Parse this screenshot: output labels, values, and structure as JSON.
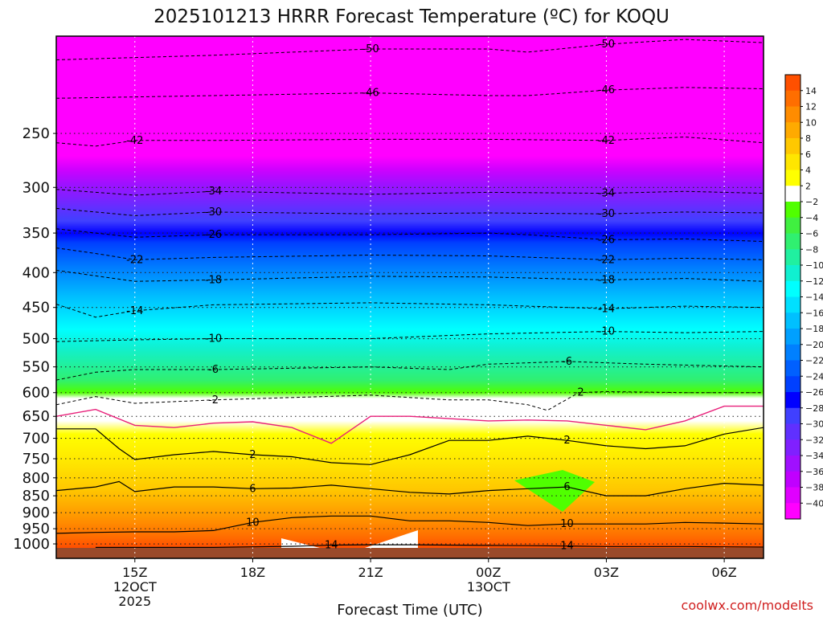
{
  "chart_data": {
    "type": "heatmap",
    "title": "2025101213 HRRR Forecast Temperature (ºC) for KOQU",
    "xlabel": "Forecast Time (UTC)",
    "ylabel": "",
    "credit": "coolwx.com/modelts",
    "y_axis": {
      "unit": "hPa",
      "reversed": true,
      "ylim": [
        1050,
        180
      ],
      "ticks": [
        250,
        300,
        350,
        400,
        450,
        500,
        550,
        600,
        650,
        700,
        750,
        800,
        850,
        900,
        950,
        1000
      ]
    },
    "x_axis": {
      "unit": "forecast hours",
      "xlim": [
        0,
        18
      ],
      "ticks": [
        {
          "x": 2,
          "lines": [
            "15Z",
            "12OCT",
            "2025"
          ]
        },
        {
          "x": 5,
          "lines": [
            "18Z"
          ]
        },
        {
          "x": 8,
          "lines": [
            "21Z"
          ]
        },
        {
          "x": 11,
          "lines": [
            "00Z",
            "13OCT"
          ]
        },
        {
          "x": 14,
          "lines": [
            "03Z"
          ]
        },
        {
          "x": 17,
          "lines": [
            "06Z"
          ]
        }
      ]
    },
    "colorbar": {
      "labels": [
        "14",
        "12",
        "10",
        "8",
        "6",
        "4",
        "2",
        "−2",
        "−4",
        "−6",
        "−8",
        "−10",
        "−12",
        "−14",
        "−16",
        "−18",
        "−20",
        "−22",
        "−24",
        "−26",
        "−28",
        "−30",
        "−32",
        "−34",
        "−36",
        "−38",
        "−40"
      ],
      "colors": [
        "#ff5000",
        "#ff6e00",
        "#ff8c00",
        "#ffaa00",
        "#ffc800",
        "#ffe600",
        "#ffff00",
        "#ffffff",
        "#50ff00",
        "#40f040",
        "#30f070",
        "#20f0a0",
        "#10f0d0",
        "#00ffff",
        "#00e0ff",
        "#00c0ff",
        "#00a0ff",
        "#0080ff",
        "#0060ff",
        "#0040ff",
        "#0000ff",
        "#4040ff",
        "#6030ff",
        "#8020ff",
        "#a010ff",
        "#c000ff",
        "#e000ff",
        "#ff00ff"
      ]
    },
    "contours": [
      {
        "level": -50,
        "label": "-50",
        "points": [
          [
            0,
            195
          ],
          [
            4,
            192
          ],
          [
            8,
            188
          ],
          [
            11,
            188
          ],
          [
            12,
            190
          ],
          [
            14,
            185
          ],
          [
            16,
            182
          ],
          [
            18,
            184
          ]
        ]
      },
      {
        "level": -46,
        "label": "-46",
        "points": [
          [
            0,
            222
          ],
          [
            4,
            220
          ],
          [
            8,
            218
          ],
          [
            11,
            220
          ],
          [
            12,
            220
          ],
          [
            14,
            216
          ],
          [
            16,
            214
          ],
          [
            18,
            215
          ]
        ]
      },
      {
        "level": -42,
        "label": "-42",
        "points": [
          [
            0,
            258
          ],
          [
            1,
            261
          ],
          [
            2,
            256
          ],
          [
            4,
            256
          ],
          [
            8,
            255
          ],
          [
            11,
            255
          ],
          [
            14,
            256
          ],
          [
            16,
            253
          ],
          [
            18,
            258
          ]
        ]
      },
      {
        "level": -34,
        "label": "-34",
        "points": [
          [
            0,
            302
          ],
          [
            2,
            308
          ],
          [
            4,
            304
          ],
          [
            8,
            307
          ],
          [
            11,
            305
          ],
          [
            14,
            306
          ],
          [
            16,
            304
          ],
          [
            18,
            306
          ]
        ]
      },
      {
        "level": -30,
        "label": "-30",
        "points": [
          [
            0,
            322
          ],
          [
            2,
            330
          ],
          [
            4,
            326
          ],
          [
            8,
            328
          ],
          [
            11,
            327
          ],
          [
            14,
            328
          ],
          [
            16,
            326
          ],
          [
            18,
            327
          ]
        ]
      },
      {
        "level": -26,
        "label": "-26",
        "points": [
          [
            0,
            345
          ],
          [
            2,
            355
          ],
          [
            4,
            352
          ],
          [
            8,
            352
          ],
          [
            11,
            350
          ],
          [
            12,
            352
          ],
          [
            14,
            358
          ],
          [
            16,
            357
          ],
          [
            18,
            360
          ]
        ]
      },
      {
        "level": -22,
        "label": "-22",
        "points": [
          [
            0,
            368
          ],
          [
            1,
            375
          ],
          [
            2,
            383
          ],
          [
            4,
            380
          ],
          [
            8,
            377
          ],
          [
            11,
            378
          ],
          [
            14,
            383
          ],
          [
            16,
            381
          ],
          [
            18,
            383
          ]
        ]
      },
      {
        "level": -18,
        "label": "-18",
        "points": [
          [
            0,
            397
          ],
          [
            2,
            412
          ],
          [
            4,
            410
          ],
          [
            8,
            405
          ],
          [
            11,
            406
          ],
          [
            14,
            410
          ],
          [
            16,
            408
          ],
          [
            18,
            412
          ]
        ]
      },
      {
        "level": -14,
        "label": "-14",
        "points": [
          [
            0,
            445
          ],
          [
            1,
            465
          ],
          [
            2,
            455
          ],
          [
            4,
            446
          ],
          [
            8,
            443
          ],
          [
            11,
            446
          ],
          [
            14,
            452
          ],
          [
            16,
            448
          ],
          [
            18,
            450
          ]
        ]
      },
      {
        "level": -10,
        "label": "-10",
        "points": [
          [
            0,
            505
          ],
          [
            2,
            502
          ],
          [
            4,
            500
          ],
          [
            8,
            500
          ],
          [
            11,
            492
          ],
          [
            14,
            488
          ],
          [
            16,
            490
          ],
          [
            18,
            488
          ]
        ]
      },
      {
        "level": -6,
        "label": "-6",
        "points": [
          [
            0,
            575
          ],
          [
            1,
            560
          ],
          [
            2,
            555
          ],
          [
            4,
            555
          ],
          [
            8,
            550
          ],
          [
            10,
            555
          ],
          [
            11,
            545
          ],
          [
            13,
            540
          ],
          [
            15,
            545
          ],
          [
            18,
            550
          ]
        ]
      },
      {
        "level": -2,
        "label": "-2",
        "points": [
          [
            0,
            625
          ],
          [
            1,
            608
          ],
          [
            2,
            622
          ],
          [
            4,
            615
          ],
          [
            8,
            605
          ],
          [
            10,
            615
          ],
          [
            11,
            615
          ],
          [
            12,
            625
          ],
          [
            12.5,
            637
          ],
          [
            13.3,
            600
          ],
          [
            14,
            598
          ],
          [
            16,
            600
          ],
          [
            18,
            600
          ]
        ]
      },
      {
        "level": 0,
        "label": "",
        "points": [
          [
            0,
            650
          ],
          [
            1,
            635
          ],
          [
            2,
            670
          ],
          [
            3,
            675
          ],
          [
            4,
            665
          ],
          [
            5,
            662
          ],
          [
            6,
            675
          ],
          [
            7,
            712
          ],
          [
            8,
            650
          ],
          [
            9,
            650
          ],
          [
            10,
            655
          ],
          [
            11,
            660
          ],
          [
            12,
            658
          ],
          [
            13,
            660
          ],
          [
            14,
            670
          ],
          [
            15,
            680
          ],
          [
            16,
            660
          ],
          [
            17,
            628
          ],
          [
            18,
            628
          ]
        ]
      },
      {
        "level": 2,
        "label": "2",
        "points": [
          [
            0,
            678
          ],
          [
            1,
            678
          ],
          [
            1.6,
            725
          ],
          [
            2,
            752
          ],
          [
            3,
            740
          ],
          [
            4,
            732
          ],
          [
            5,
            740
          ],
          [
            6,
            745
          ],
          [
            7,
            760
          ],
          [
            8,
            765
          ],
          [
            9,
            740
          ],
          [
            10,
            705
          ],
          [
            11,
            705
          ],
          [
            12,
            695
          ],
          [
            13,
            705
          ],
          [
            14,
            718
          ],
          [
            15,
            725
          ],
          [
            16,
            718
          ],
          [
            17,
            690
          ],
          [
            18,
            675
          ]
        ]
      },
      {
        "level": 6,
        "label": "6",
        "points": [
          [
            0,
            835
          ],
          [
            1,
            825
          ],
          [
            1.6,
            810
          ],
          [
            2,
            838
          ],
          [
            3,
            825
          ],
          [
            4,
            825
          ],
          [
            5,
            830
          ],
          [
            6,
            828
          ],
          [
            7,
            820
          ],
          [
            8,
            830
          ],
          [
            9,
            840
          ],
          [
            10,
            845
          ],
          [
            11,
            835
          ],
          [
            12,
            830
          ],
          [
            13,
            825
          ],
          [
            14,
            850
          ],
          [
            15,
            850
          ],
          [
            16,
            830
          ],
          [
            17,
            815
          ],
          [
            18,
            820
          ]
        ]
      },
      {
        "level": 10,
        "label": "10",
        "points": [
          [
            0,
            965
          ],
          [
            1,
            962
          ],
          [
            2,
            960
          ],
          [
            3,
            960
          ],
          [
            4,
            956
          ],
          [
            5,
            930
          ],
          [
            6,
            915
          ],
          [
            7,
            910
          ],
          [
            8,
            910
          ],
          [
            9,
            925
          ],
          [
            10,
            925
          ],
          [
            11,
            930
          ],
          [
            12,
            940
          ],
          [
            13,
            935
          ],
          [
            14,
            935
          ],
          [
            15,
            935
          ],
          [
            16,
            930
          ],
          [
            17,
            932
          ],
          [
            18,
            935
          ]
        ]
      },
      {
        "level": 14,
        "label": "14",
        "points": [
          [
            1,
            1012
          ],
          [
            2,
            1012
          ],
          [
            3,
            1012
          ],
          [
            4,
            1012
          ],
          [
            6,
            1008
          ],
          [
            7,
            1004
          ],
          [
            8,
            1003
          ],
          [
            9,
            1003
          ],
          [
            10,
            1004
          ],
          [
            11,
            1005
          ],
          [
            12,
            1006
          ],
          [
            13,
            1007
          ],
          [
            14,
            1009
          ],
          [
            15,
            1009
          ],
          [
            16,
            1009
          ],
          [
            17,
            1010
          ],
          [
            18,
            1011
          ]
        ]
      }
    ]
  }
}
